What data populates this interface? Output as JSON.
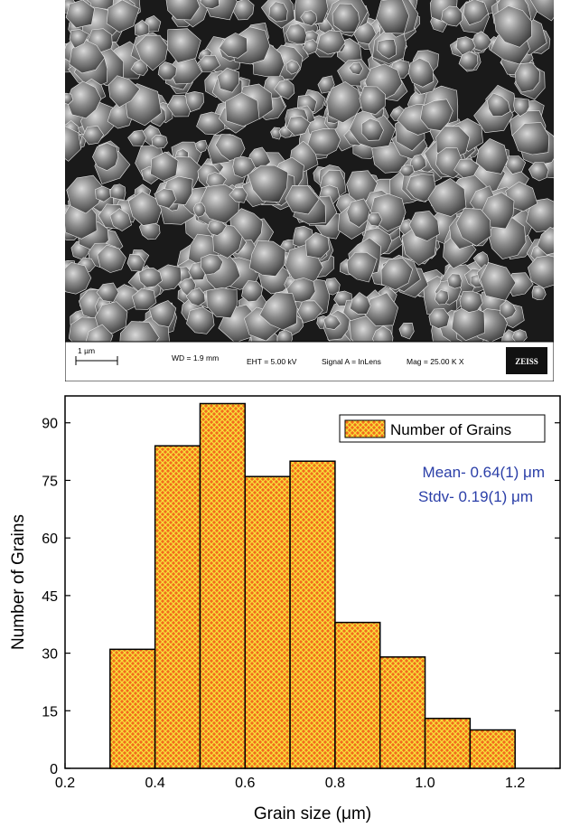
{
  "sem_image": {
    "scale_label": "1 µm",
    "wd": "WD =  1.9 mm",
    "eht": "EHT =  5.00 kV",
    "signal": "Signal A = InLens",
    "mag": "Mag =  25.00 K X",
    "logo": "ZEISS"
  },
  "chart_data": {
    "type": "bar",
    "bin_edges": [
      0.3,
      0.4,
      0.5,
      0.6,
      0.7,
      0.8,
      0.9,
      1.0,
      1.1,
      1.2
    ],
    "values": [
      31,
      84,
      95,
      76,
      80,
      38,
      29,
      13,
      10
    ],
    "xlabel": "Grain size (μm)",
    "ylabel": "Number of Grains",
    "xlim": [
      0.2,
      1.3
    ],
    "ylim": [
      0,
      97
    ],
    "xticks": [
      0.2,
      0.4,
      0.6,
      0.8,
      1.0,
      1.2
    ],
    "xtick_labels": [
      "0.2",
      "0.4",
      "0.6",
      "0.8",
      "1.0",
      "1.2"
    ],
    "yticks": [
      0,
      15,
      30,
      45,
      60,
      75,
      90
    ],
    "ytick_labels": [
      "0",
      "15",
      "30",
      "45",
      "60",
      "75",
      "90"
    ],
    "legend": {
      "label": "Number of Grains",
      "position": "top-right"
    },
    "annotations": [
      "Mean- 0.64(1) μm",
      "Stdv- 0.19(1) μm"
    ],
    "bar_fill_colors": {
      "base": "#f26b1d",
      "hatch": "#f7df3a",
      "edge": "#000000"
    },
    "annotation_color": "#2b3fa8",
    "grid": false
  }
}
